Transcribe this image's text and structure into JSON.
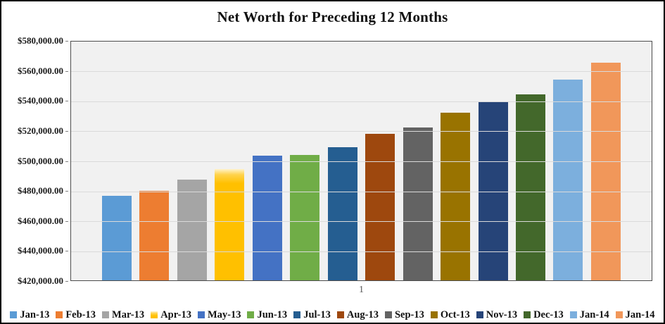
{
  "chart_data": {
    "type": "bar",
    "title": "Net Worth for Preceding 12 Months",
    "xlabel": "",
    "ylabel": "",
    "categories": [
      "Jan-13",
      "Feb-13",
      "Mar-13",
      "Apr-13",
      "May-13",
      "Jun-13",
      "Jul-13",
      "Aug-13",
      "Sep-13",
      "Oct-13",
      "Nov-13",
      "Dec-13",
      "Jan-14",
      "Jan-14"
    ],
    "values": [
      476500,
      479800,
      487600,
      494800,
      503500,
      504200,
      509200,
      518400,
      522200,
      532500,
      539600,
      544800,
      554500,
      565700
    ],
    "colors": [
      "#5B9BD5",
      "#ED7D31",
      "#A5A5A5",
      "#FFC000",
      "#4472C4",
      "#70AD47",
      "#255E91",
      "#9E480E",
      "#636363",
      "#997300",
      "#264478",
      "#43682B",
      "#7CAFDD",
      "#F1975A"
    ],
    "bar_top_highlight": {
      "category_index": 3,
      "top_color": "#FFF3CD",
      "mid_color": "#FFD34D"
    },
    "ylim": [
      420000,
      580000
    ],
    "yticks": [
      {
        "label": "$580,000.00",
        "value": 580000
      },
      {
        "label": "$560,000.00",
        "value": 560000
      },
      {
        "label": "$540,000.00",
        "value": 540000
      },
      {
        "label": "$520,000.00",
        "value": 520000
      },
      {
        "label": "$500,000.00",
        "value": 500000
      },
      {
        "label": "$480,000.00",
        "value": 480000
      },
      {
        "label": "$460,000.00",
        "value": 460000
      },
      {
        "label": "$440,000.00",
        "value": 440000
      },
      {
        "label": "$420,000.00",
        "value": 420000
      }
    ],
    "xticks": [
      "1"
    ],
    "grid": true,
    "legend_position": "bottom",
    "style": {
      "plot_background": "#F1F1F1",
      "gridline_color": "#DADADA",
      "axis_border_color": "#4d4d4d",
      "xtick_color": "#595959",
      "text_color": "#111111"
    }
  }
}
